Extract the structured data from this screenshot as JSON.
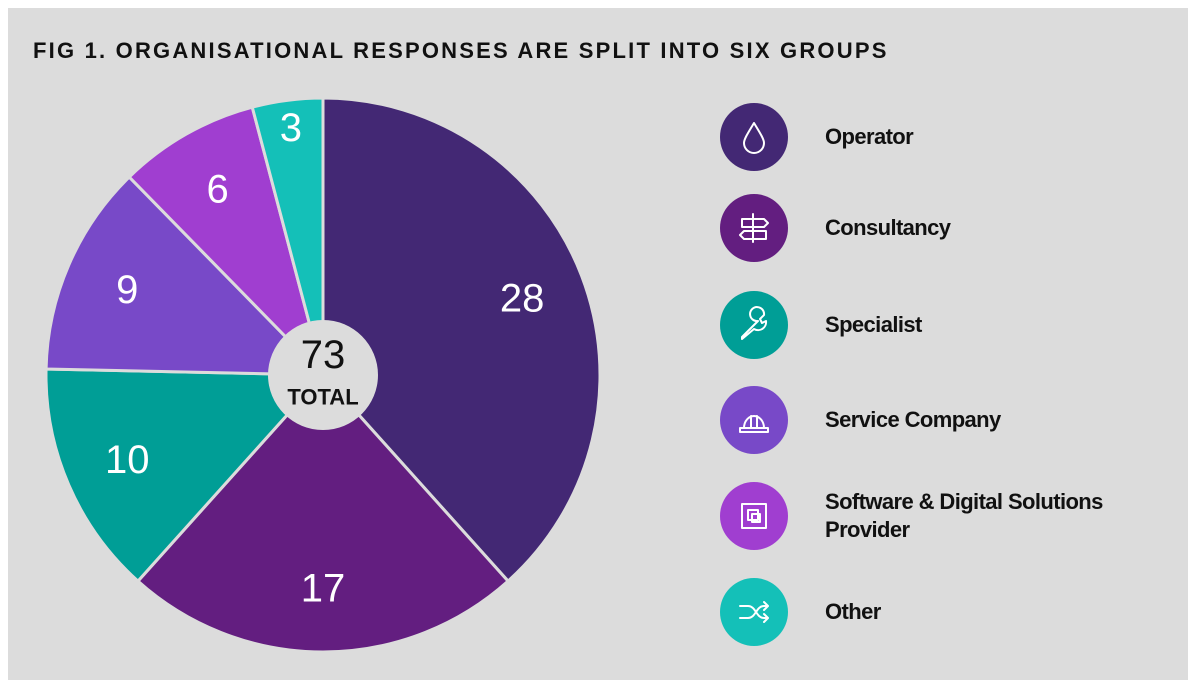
{
  "chart_data": {
    "type": "pie",
    "title": "FIG 1. ORGANISATIONAL RESPONSES ARE SPLIT INTO SIX GROUPS",
    "categories": [
      "Operator",
      "Consultancy",
      "Specialist",
      "Service Company",
      "Software & Digital Solutions Provider",
      "Other"
    ],
    "values": [
      28,
      17,
      10,
      9,
      6,
      3
    ],
    "colors": [
      "#432874",
      "#631e80",
      "#009e96",
      "#7849c8",
      "#a03ed0",
      "#14c0b8"
    ],
    "total": 73,
    "total_label": "TOTAL",
    "legend": "right"
  }
}
